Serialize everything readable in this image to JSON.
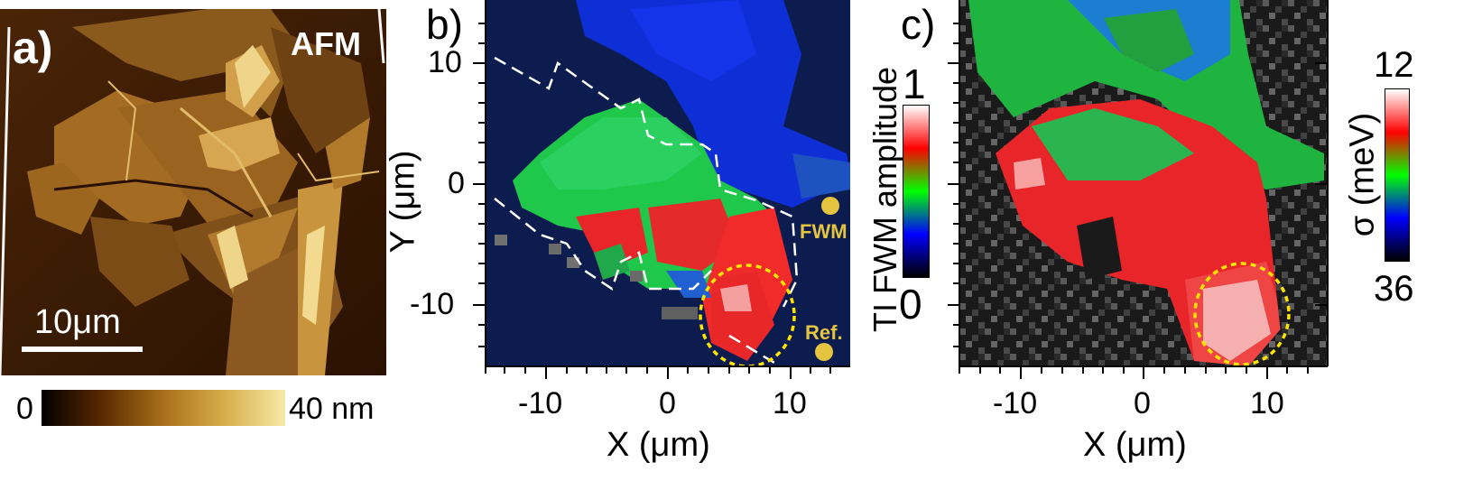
{
  "panel_a": {
    "label": "a)",
    "badge": "AFM",
    "scale_bar_label": "10μm",
    "colorbar": {
      "min_label": "0",
      "max_label": "40 nm",
      "colors": [
        "#000000",
        "#5a2a00",
        "#a8701a",
        "#d7ae4a",
        "#f6e9a6"
      ]
    }
  },
  "panel_b": {
    "label": "b)",
    "xlabel": "X (μm)",
    "ylabel": "Y (μm)",
    "xticks": [
      "-10",
      "0",
      "10"
    ],
    "yticks": [
      "10",
      "0",
      "-10"
    ],
    "markers": [
      {
        "text": "FWM",
        "x": 13.5,
        "y": -2
      },
      {
        "text": "Ref.",
        "x": 13.5,
        "y": -14
      }
    ],
    "colorbar": {
      "title": "TI FWM amplitude",
      "max_label": "1",
      "min_label": "0",
      "colors": [
        "#000000",
        "#0000ff",
        "#00ff00",
        "#ff0000",
        "#ffffff"
      ]
    }
  },
  "panel_c": {
    "label": "c)",
    "xlabel": "X (μm)",
    "xticks": [
      "-10",
      "0",
      "10"
    ],
    "colorbar": {
      "title": "σ (meV)",
      "top_label": "12",
      "bottom_label": "36",
      "colors": [
        "#000000",
        "#0000ff",
        "#00ff00",
        "#ff0000",
        "#ffffff"
      ]
    }
  }
}
